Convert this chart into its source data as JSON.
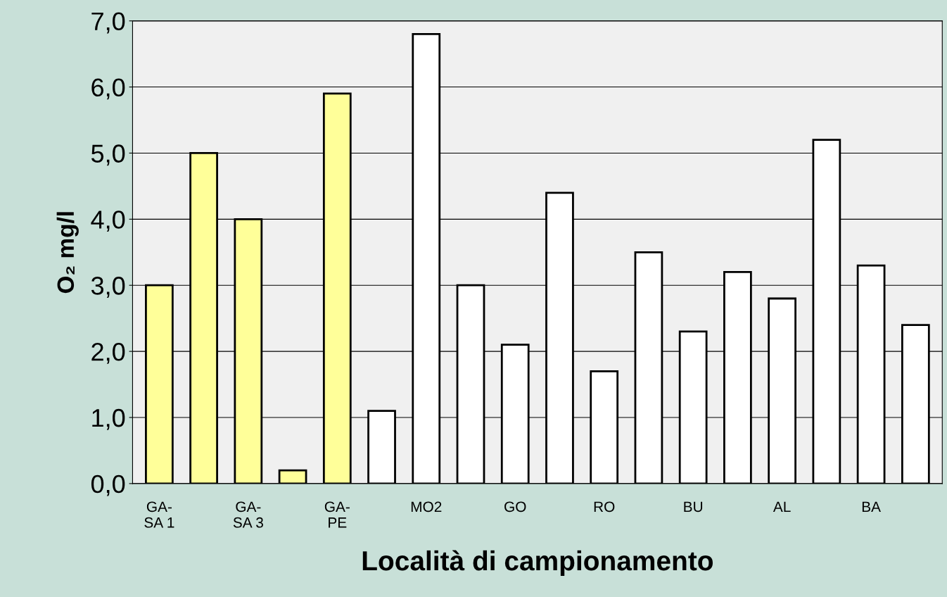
{
  "chart_data": {
    "type": "bar",
    "xlabel": "Località di campionamento",
    "ylabel": "O₂ mg/l",
    "categories": [
      "GA-\nSA 1",
      null,
      "GA-\nSA 3",
      null,
      "GA-\nPE",
      null,
      "MO2",
      null,
      "GO",
      null,
      "RO",
      null,
      "BU",
      null,
      "AL",
      null,
      "BA",
      null
    ],
    "values": [
      3.0,
      5.0,
      4.0,
      0.2,
      5.9,
      1.1,
      6.8,
      3.0,
      2.1,
      4.4,
      1.7,
      3.5,
      2.3,
      3.2,
      2.8,
      5.2,
      3.3,
      2.4
    ],
    "colors": [
      "#ffff99",
      "#ffff99",
      "#ffff99",
      "#ffff99",
      "#ffff99",
      "#ffffff",
      "#ffffff",
      "#ffffff",
      "#ffffff",
      "#ffffff",
      "#ffffff",
      "#ffffff",
      "#ffffff",
      "#ffffff",
      "#ffffff",
      "#ffffff",
      "#ffffff",
      "#ffffff"
    ],
    "ylim": [
      0,
      7
    ],
    "yticks": [
      {
        "value": 0,
        "label": "0,0"
      },
      {
        "value": 1,
        "label": "1,0"
      },
      {
        "value": 2,
        "label": "2,0"
      },
      {
        "value": 3,
        "label": "3,0"
      },
      {
        "value": 4,
        "label": "4,0"
      },
      {
        "value": 5,
        "label": "5,0"
      },
      {
        "value": 6,
        "label": "6,0"
      },
      {
        "value": 7,
        "label": "7,0"
      }
    ],
    "grid": "y"
  }
}
